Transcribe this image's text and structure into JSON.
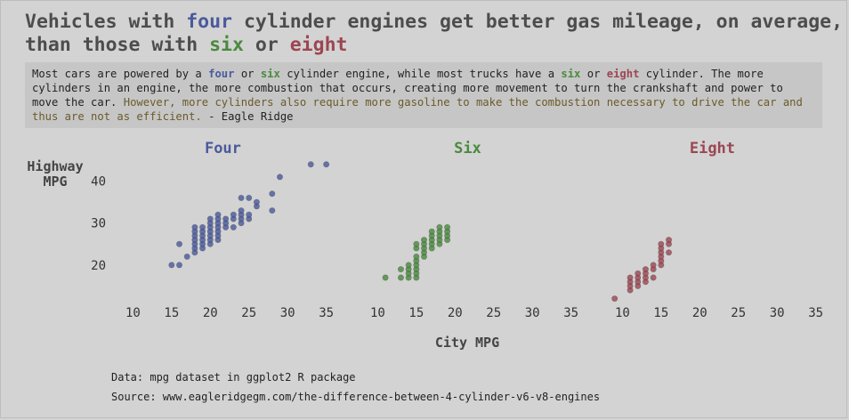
{
  "title": {
    "line1_a": "Vehicles with ",
    "line1_four": "four",
    "line1_b": " cylinder engines get better gas mileage, on average,",
    "line2_a": "than those with ",
    "line2_six": "six",
    "line2_or": " or ",
    "line2_eight": "eight"
  },
  "description": {
    "p1": "Most cars are powered by a ",
    "four": "four",
    "p2": " or ",
    "six": "six",
    "p3": " cylinder engine, while most trucks have a ",
    "six2": "six",
    "p4": " or ",
    "eight": "eight",
    "p5": " cylinder. The more cylinders in an engine, the more combustion that occurs, creating more movement to turn the crankshaft and power to move the car. ",
    "highlight": "However, more cylinders also require more gasoline to make the combustion necessary to drive the car and thus are not as efficient.",
    "p6": " - Eagle Ridge"
  },
  "colors": {
    "four": "#4a5a9c",
    "six": "#4a8a3d",
    "eight": "#9c4652"
  },
  "footer": {
    "data": "Data: mpg dataset in ggplot2 R package",
    "source": "Source: www.eagleridgegm.com/the-difference-between-4-cylinder-v6-v8-engines"
  },
  "chart_data": {
    "type": "scatter",
    "xlabel": "City MPG",
    "ylabel": "Highway MPG",
    "xlim": [
      8,
      37
    ],
    "ylim": [
      10,
      45
    ],
    "xticks": [
      10,
      15,
      20,
      25,
      30,
      35
    ],
    "yticks": [
      20,
      30,
      40
    ],
    "grid": false,
    "panels": [
      {
        "name": "Four",
        "color": "#4a5a9c",
        "points": [
          [
            15,
            20
          ],
          [
            16,
            20
          ],
          [
            16,
            25
          ],
          [
            17,
            22
          ],
          [
            18,
            23
          ],
          [
            18,
            24
          ],
          [
            18,
            25
          ],
          [
            18,
            26
          ],
          [
            18,
            27
          ],
          [
            18,
            28
          ],
          [
            18,
            29
          ],
          [
            19,
            24
          ],
          [
            19,
            25
          ],
          [
            19,
            26
          ],
          [
            19,
            27
          ],
          [
            19,
            28
          ],
          [
            19,
            29
          ],
          [
            20,
            25
          ],
          [
            20,
            26
          ],
          [
            20,
            27
          ],
          [
            20,
            28
          ],
          [
            20,
            29
          ],
          [
            20,
            30
          ],
          [
            20,
            31
          ],
          [
            21,
            26
          ],
          [
            21,
            27
          ],
          [
            21,
            28
          ],
          [
            21,
            29
          ],
          [
            21,
            30
          ],
          [
            21,
            31
          ],
          [
            21,
            32
          ],
          [
            22,
            29
          ],
          [
            22,
            30
          ],
          [
            22,
            31
          ],
          [
            23,
            29
          ],
          [
            23,
            31
          ],
          [
            23,
            32
          ],
          [
            24,
            30
          ],
          [
            24,
            31
          ],
          [
            24,
            32
          ],
          [
            24,
            33
          ],
          [
            24,
            36
          ],
          [
            25,
            31
          ],
          [
            25,
            32
          ],
          [
            25,
            36
          ],
          [
            26,
            34
          ],
          [
            26,
            35
          ],
          [
            28,
            33
          ],
          [
            28,
            37
          ],
          [
            29,
            41
          ],
          [
            33,
            44
          ],
          [
            35,
            44
          ]
        ]
      },
      {
        "name": "Six",
        "color": "#4a8a3d",
        "points": [
          [
            11,
            17
          ],
          [
            13,
            17
          ],
          [
            13,
            19
          ],
          [
            14,
            17
          ],
          [
            14,
            18
          ],
          [
            14,
            19
          ],
          [
            14,
            20
          ],
          [
            15,
            17
          ],
          [
            15,
            18
          ],
          [
            15,
            19
          ],
          [
            15,
            20
          ],
          [
            15,
            21
          ],
          [
            15,
            22
          ],
          [
            15,
            24
          ],
          [
            15,
            25
          ],
          [
            16,
            22
          ],
          [
            16,
            23
          ],
          [
            16,
            24
          ],
          [
            16,
            25
          ],
          [
            16,
            26
          ],
          [
            17,
            24
          ],
          [
            17,
            25
          ],
          [
            17,
            26
          ],
          [
            17,
            27
          ],
          [
            17,
            28
          ],
          [
            18,
            25
          ],
          [
            18,
            26
          ],
          [
            18,
            27
          ],
          [
            18,
            28
          ],
          [
            18,
            29
          ],
          [
            19,
            26
          ],
          [
            19,
            27
          ],
          [
            19,
            28
          ],
          [
            19,
            29
          ]
        ]
      },
      {
        "name": "Eight",
        "color": "#9c4652",
        "points": [
          [
            9,
            12
          ],
          [
            11,
            14
          ],
          [
            11,
            15
          ],
          [
            11,
            16
          ],
          [
            11,
            17
          ],
          [
            12,
            15
          ],
          [
            12,
            16
          ],
          [
            12,
            17
          ],
          [
            12,
            18
          ],
          [
            13,
            16
          ],
          [
            13,
            17
          ],
          [
            13,
            18
          ],
          [
            13,
            19
          ],
          [
            14,
            17
          ],
          [
            14,
            19
          ],
          [
            14,
            20
          ],
          [
            15,
            20
          ],
          [
            15,
            21
          ],
          [
            15,
            22
          ],
          [
            15,
            23
          ],
          [
            15,
            24
          ],
          [
            15,
            25
          ],
          [
            16,
            23
          ],
          [
            16,
            25
          ],
          [
            16,
            26
          ]
        ]
      }
    ]
  }
}
